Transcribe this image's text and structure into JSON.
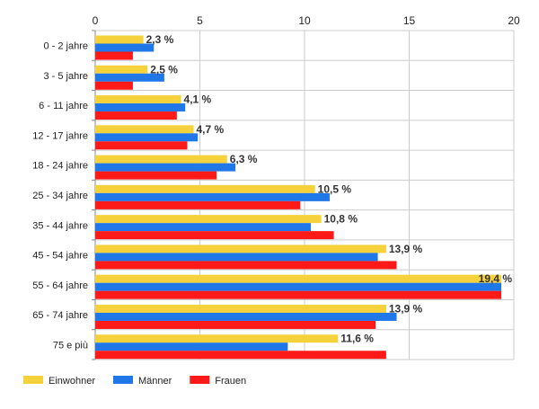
{
  "chart_data": {
    "type": "bar",
    "orientation": "horizontal",
    "categories": [
      "0 - 2 jahre",
      "3 - 5 jahre",
      "6 - 11 jahre",
      "12 - 17 jahre",
      "18 - 24 jahre",
      "25 - 34 jahre",
      "35 - 44 jahre",
      "45 - 54 jahre",
      "55 - 64 jahre",
      "65 - 74 jahre",
      "75 e più"
    ],
    "series": [
      {
        "name": "Einwohner",
        "color": "#f5d13b",
        "values": [
          2.3,
          2.5,
          4.1,
          4.7,
          6.3,
          10.5,
          10.8,
          13.9,
          19.4,
          13.9,
          11.6
        ]
      },
      {
        "name": "Männer",
        "color": "#1f77e8",
        "values": [
          2.8,
          3.3,
          4.3,
          4.9,
          6.7,
          11.2,
          10.3,
          13.5,
          19.4,
          14.4,
          9.2
        ]
      },
      {
        "name": "Frauen",
        "color": "#ff1a1a",
        "values": [
          1.8,
          1.8,
          3.9,
          4.4,
          5.8,
          9.8,
          11.4,
          14.4,
          19.4,
          13.4,
          13.9
        ]
      }
    ],
    "data_labels": [
      "2,3 %",
      "2,5 %",
      "4,1 %",
      "4,7 %",
      "6,3 %",
      "10,5 %",
      "10,8 %",
      "13,9 %",
      "19,4 %",
      "13,9 %",
      "11,6 %"
    ],
    "x_ticks": [
      "0",
      "5",
      "10",
      "15",
      "20"
    ],
    "xlim": [
      0,
      20
    ],
    "axis_position": "top",
    "grid": true,
    "legend_position": "bottom-left",
    "gridline_color": "#cccccc"
  }
}
